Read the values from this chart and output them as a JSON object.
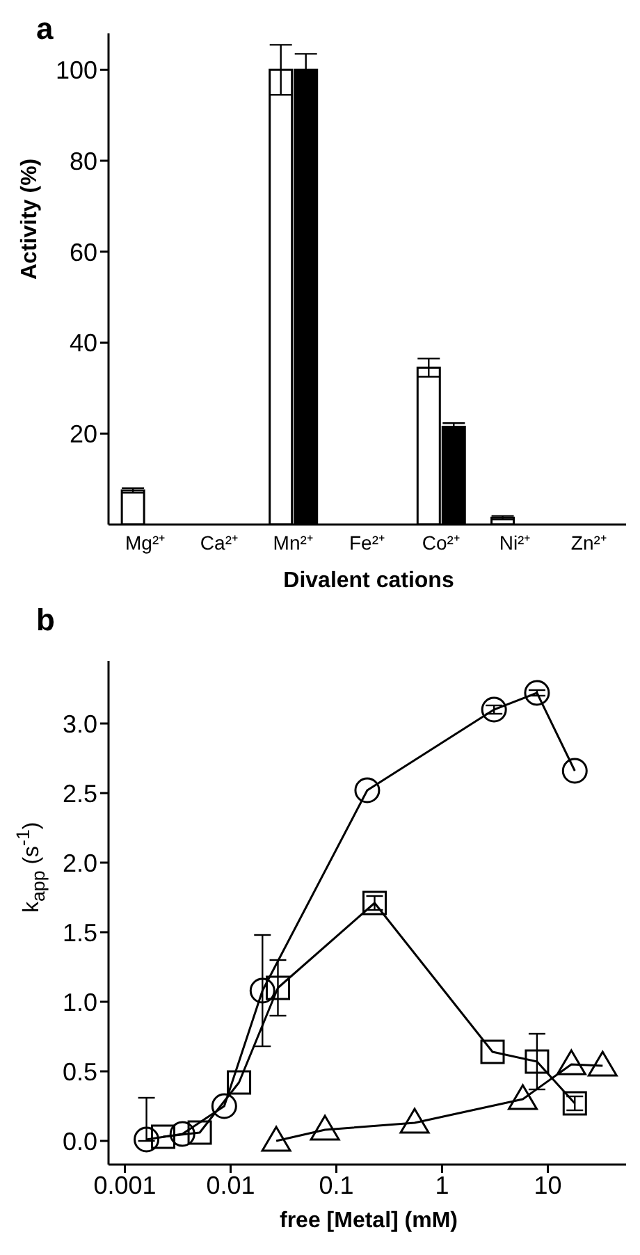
{
  "chart_data": [
    {
      "type": "bar",
      "title": "a",
      "xlabel": "Divalent cations",
      "ylabel": "Activity (%)",
      "categories": [
        "Mg²⁺",
        "Ca²⁺",
        "Mn²⁺",
        "Fe²⁺",
        "Co²⁺",
        "Ni²⁺",
        "Zn²⁺"
      ],
      "series": [
        {
          "color": "#ffffff",
          "values": [
            7.5,
            0,
            100,
            0,
            34.5,
            1.5,
            0
          ],
          "errors": [
            0.5,
            null,
            5.5,
            null,
            2,
            0.4,
            null
          ]
        },
        {
          "color": "#000000",
          "values": [
            0,
            0,
            100,
            0,
            21.5,
            0,
            0
          ],
          "errors": [
            null,
            null,
            3.5,
            null,
            0.8,
            null,
            null
          ]
        }
      ],
      "ylim": [
        0,
        108
      ],
      "yticks": [
        20,
        40,
        60,
        80,
        100
      ],
      "grid": false,
      "legend": false
    },
    {
      "type": "line",
      "title": "b",
      "xlabel": "free [Metal] (mM)",
      "ylabel": "k$_{app}$ (s$^{-1}$)",
      "log": "x",
      "series": [
        {
          "color": "#000000",
          "marker": "circle",
          "x": [
            0.0016,
            0.0035,
            0.0087,
            0.02,
            0.196,
            3.1,
            7.9,
            18
          ],
          "values": [
            0.01,
            0.05,
            0.25,
            1.08,
            2.52,
            3.1,
            3.22,
            2.66
          ],
          "errors": [
            [
              0,
              0.31
            ],
            null,
            null,
            0.4,
            null,
            0.03,
            0.02,
            null
          ]
        },
        {
          "color": "#000000",
          "marker": "square",
          "x": [
            0.0023,
            0.0051,
            0.012,
            0.028,
            0.23,
            3.0,
            7.9,
            18
          ],
          "values": [
            0.03,
            0.06,
            0.42,
            1.1,
            1.71,
            0.64,
            0.57,
            0.27
          ],
          "errors": [
            null,
            null,
            null,
            0.2,
            0.05,
            null,
            0.2,
            0.05
          ]
        },
        {
          "color": "#000000",
          "marker": "triangle",
          "x": [
            0.027,
            0.078,
            0.55,
            5.8,
            16.7,
            33
          ],
          "values": [
            0.0,
            0.08,
            0.13,
            0.3,
            0.55,
            0.54
          ]
        }
      ],
      "xlim": [
        0.0007,
        55
      ],
      "xticks": [
        0.001,
        0.01,
        0.1,
        1,
        10
      ],
      "ylim": [
        -0.17,
        3.45
      ],
      "yticks": [
        {
          "value": 0,
          "label": "0.0"
        },
        {
          "value": 0.5,
          "label": "0.5"
        },
        {
          "value": 1,
          "label": "1.0"
        },
        {
          "value": 1.5,
          "label": "1.5"
        },
        {
          "value": 2,
          "label": "2.0"
        },
        {
          "value": 2.5,
          "label": "2.5"
        },
        {
          "value": 3,
          "label": "3.0"
        }
      ],
      "grid": false,
      "legend": false
    }
  ]
}
